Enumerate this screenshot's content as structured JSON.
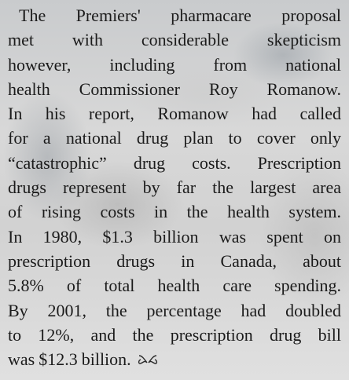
{
  "paragraph": {
    "lines": [
      "The Premiers' pharmacare proposal",
      "met with considerable skepticism",
      "however, including from national",
      "health Commissioner Roy Romanow.",
      "In his report, Romanow had called",
      "for a national drug plan to cover only",
      "“catastrophic” drug costs. Prescription",
      "drugs represent by far the largest area",
      "of rising costs in the health system.",
      "In 1980, $1.3 billion was spent on",
      "prescription drugs in Canada, about",
      "5.8% of total health care spending.",
      "By 2001, the percentage had doubled",
      "to 12%, and the prescription drug bill",
      "was $12.3 billion."
    ]
  }
}
